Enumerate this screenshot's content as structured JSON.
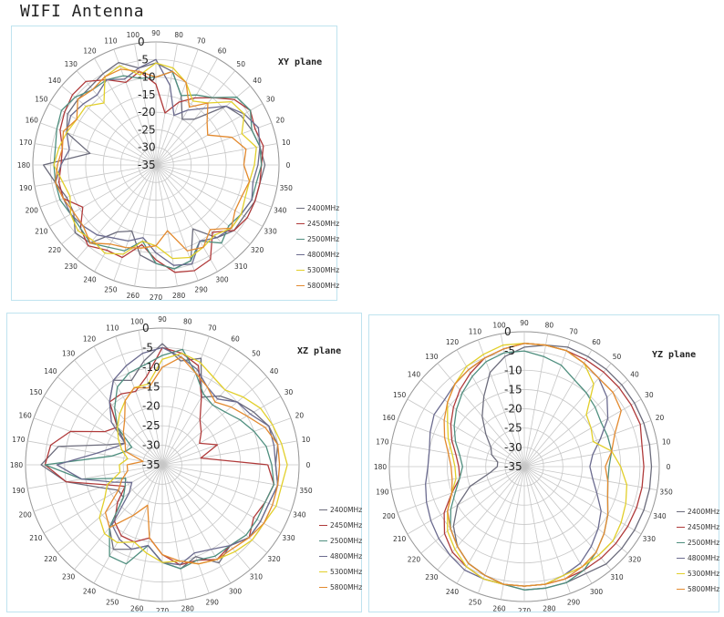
{
  "page": {
    "title": "WIFI Antenna"
  },
  "legend_series": [
    "2400MHz",
    "2450MHz",
    "2500MHz",
    "4800MHz",
    "5300MHz",
    "5800MHz"
  ],
  "colors": {
    "2400MHz": "#6c6c7c",
    "2450MHz": "#b03a3a",
    "2500MHz": "#4f8f7f",
    "4800MHz": "#6b6b8f",
    "5300MHz": "#e2cf2a",
    "5800MHz": "#e38a2f",
    "grid": "#c7c7c7",
    "panel_border": "#bfe3ef"
  },
  "chart_data": [
    {
      "type": "polar",
      "title": "XY plane",
      "r_ticks": [
        0,
        -5,
        -10,
        -15,
        -20,
        -25,
        -30,
        -35
      ],
      "r_range": [
        -35,
        0
      ],
      "angle_ticks": [
        0,
        10,
        20,
        30,
        40,
        50,
        60,
        70,
        80,
        90,
        100,
        110,
        120,
        130,
        140,
        150,
        160,
        170,
        180,
        190,
        200,
        210,
        220,
        230,
        240,
        250,
        260,
        270,
        280,
        290,
        300,
        310,
        320,
        330,
        340,
        350
      ],
      "theta": [
        0,
        10,
        20,
        30,
        40,
        50,
        60,
        70,
        80,
        90,
        100,
        110,
        120,
        130,
        140,
        150,
        160,
        170,
        180,
        190,
        200,
        210,
        220,
        230,
        240,
        250,
        260,
        270,
        280,
        290,
        300,
        310,
        320,
        330,
        340,
        350
      ],
      "series": [
        {
          "name": "2400MHz",
          "values": [
            -4,
            -5,
            -6,
            -7,
            -9,
            -18,
            -20,
            -14,
            -8,
            -6,
            -7,
            -4,
            -5,
            -6,
            -6,
            -6,
            -8,
            -16,
            -3,
            -6,
            -8,
            -8,
            -5,
            -6,
            -13,
            -15,
            -9,
            -7,
            -5,
            -6,
            -14,
            -8,
            -6,
            -6,
            -5,
            -5
          ]
        },
        {
          "name": "2450MHz",
          "values": [
            -5,
            -4,
            -5,
            -4,
            -6,
            -10,
            -13,
            -16,
            -20,
            -12,
            -8,
            -10,
            -7,
            -4,
            -4,
            -5,
            -6,
            -8,
            -8,
            -7,
            -7,
            -11,
            -7,
            -5,
            -7,
            -7,
            -12,
            -8,
            -4,
            -3,
            -4,
            -10,
            -6,
            -5,
            -5,
            -5
          ]
        },
        {
          "name": "2500MHz",
          "values": [
            -5,
            -5,
            -6,
            -4,
            -5,
            -10,
            -12,
            -14,
            -8,
            -10,
            -10,
            -8,
            -7,
            -7,
            -5,
            -4,
            -5,
            -6,
            -6,
            -6,
            -6,
            -7,
            -7,
            -6,
            -8,
            -9,
            -13,
            -7,
            -5,
            -6,
            -10,
            -6,
            -8,
            -7,
            -6,
            -6
          ]
        },
        {
          "name": "4800MHz",
          "values": [
            -6,
            -5,
            -4,
            -6,
            -9,
            -14,
            -17,
            -20,
            -12,
            -5,
            -7,
            -9,
            -7,
            -9,
            -8,
            -7,
            -8,
            -10,
            -8,
            -6,
            -7,
            -7,
            -8,
            -9,
            -11,
            -12,
            -14,
            -10,
            -6,
            -5,
            -10,
            -8,
            -7,
            -7,
            -6,
            -7
          ]
        },
        {
          "name": "5300MHz",
          "values": [
            -7,
            -6,
            -9,
            -6,
            -7,
            -12,
            -14,
            -10,
            -7,
            -6,
            -9,
            -5,
            -6,
            -12,
            -9,
            -9,
            -8,
            -7,
            -6,
            -8,
            -9,
            -7,
            -6,
            -7,
            -6,
            -8,
            -13,
            -12,
            -8,
            -7,
            -8,
            -9,
            -7,
            -7,
            -8,
            -8
          ]
        },
        {
          "name": "5800MHz",
          "values": [
            -10,
            -9,
            -12,
            -18,
            -16,
            -12,
            -16,
            -10,
            -8,
            -10,
            -8,
            -6,
            -6,
            -7,
            -6,
            -9,
            -7,
            -8,
            -7,
            -6,
            -7,
            -8,
            -8,
            -6,
            -9,
            -10,
            -11,
            -12,
            -16,
            -9,
            -8,
            -11,
            -7,
            -9,
            -9,
            -8
          ]
        }
      ]
    },
    {
      "type": "polar",
      "title": "XZ plane",
      "r_ticks": [
        0,
        -5,
        -10,
        -15,
        -20,
        -25,
        -30,
        -35
      ],
      "r_range": [
        -35,
        0
      ],
      "angle_ticks": [
        0,
        10,
        20,
        30,
        40,
        50,
        60,
        70,
        80,
        90,
        100,
        110,
        120,
        130,
        140,
        150,
        160,
        170,
        180,
        190,
        200,
        210,
        220,
        230,
        240,
        250,
        260,
        270,
        280,
        290,
        300,
        310,
        320,
        330,
        340,
        350
      ],
      "theta": [
        0,
        10,
        20,
        30,
        40,
        50,
        60,
        70,
        80,
        90,
        100,
        110,
        120,
        130,
        140,
        150,
        160,
        170,
        180,
        190,
        200,
        210,
        220,
        230,
        240,
        250,
        260,
        270,
        280,
        290,
        300,
        310,
        320,
        330,
        340,
        350
      ],
      "series": [
        {
          "name": "2400MHz",
          "values": [
            -6,
            -5,
            -6,
            -8,
            -10,
            -12,
            -15,
            -6,
            -8,
            -4,
            -8,
            -12,
            -10,
            -14,
            -20,
            -24,
            -20,
            -8,
            -4,
            -10,
            -18,
            -22,
            -22,
            -14,
            -10,
            -12,
            -14,
            -10,
            -8,
            -10,
            -6,
            -8,
            -6,
            -6,
            -6,
            -5
          ]
        },
        {
          "name": "2450MHz",
          "values": [
            -8,
            -25,
            -20,
            -24,
            -22,
            -20,
            -15,
            -8,
            -6,
            -5,
            -12,
            -15,
            -14,
            -14,
            -20,
            -18,
            -10,
            -6,
            -5,
            -10,
            -20,
            -24,
            -20,
            -16,
            -14,
            -14,
            -16,
            -12,
            -9,
            -9,
            -7,
            -8,
            -6,
            -8,
            -7,
            -6
          ]
        },
        {
          "name": "2500MHz",
          "values": [
            -7,
            -8,
            -10,
            -12,
            -14,
            -15,
            -14,
            -10,
            -5,
            -7,
            -9,
            -10,
            -12,
            -16,
            -20,
            -26,
            -25,
            -22,
            -5,
            -14,
            -25,
            -24,
            -22,
            -14,
            -8,
            -8,
            -14,
            -10,
            -8,
            -9,
            -8,
            -8,
            -7,
            -7,
            -7,
            -6
          ]
        },
        {
          "name": "4800MHz",
          "values": [
            -6,
            -6,
            -6,
            -9,
            -10,
            -13,
            -12,
            -9,
            -7,
            -5,
            -6,
            -8,
            -10,
            -14,
            -18,
            -24,
            -22,
            -18,
            -8,
            -14,
            -22,
            -26,
            -24,
            -15,
            -13,
            -12,
            -14,
            -10,
            -9,
            -11,
            -10,
            -8,
            -6,
            -6,
            -6,
            -5
          ]
        },
        {
          "name": "5300MHz",
          "values": [
            -3,
            -4,
            -5,
            -6,
            -8,
            -10,
            -9,
            -7,
            -6,
            -8,
            -14,
            -14,
            -16,
            -18,
            -20,
            -22,
            -24,
            -26,
            -24,
            -24,
            -20,
            -18,
            -14,
            -12,
            -12,
            -14,
            -12,
            -10,
            -10,
            -8,
            -7,
            -6,
            -5,
            -5,
            -4,
            -4
          ]
        },
        {
          "name": "5800MHz",
          "values": [
            -5,
            -5,
            -7,
            -10,
            -12,
            -14,
            -12,
            -10,
            -7,
            -10,
            -15,
            -14,
            -16,
            -20,
            -22,
            -24,
            -25,
            -30,
            -26,
            -26,
            -24,
            -22,
            -16,
            -14,
            -20,
            -24,
            -16,
            -12,
            -10,
            -8,
            -7,
            -7,
            -6,
            -5,
            -5,
            -5
          ]
        }
      ]
    },
    {
      "type": "polar",
      "title": "YZ plane",
      "r_ticks": [
        0,
        -5,
        -10,
        -15,
        -20,
        -25,
        -30,
        -35
      ],
      "r_range": [
        -35,
        0
      ],
      "angle_ticks": [
        0,
        10,
        20,
        30,
        40,
        50,
        60,
        70,
        80,
        90,
        100,
        110,
        120,
        130,
        140,
        150,
        160,
        170,
        180,
        190,
        200,
        210,
        220,
        230,
        240,
        250,
        260,
        270,
        280,
        290,
        300,
        310,
        320,
        330,
        340,
        350
      ],
      "theta": [
        0,
        10,
        20,
        30,
        40,
        50,
        60,
        70,
        80,
        90,
        100,
        110,
        120,
        130,
        140,
        150,
        160,
        170,
        180,
        190,
        200,
        210,
        220,
        230,
        240,
        250,
        260,
        270,
        280,
        290,
        300,
        310,
        320,
        330,
        340,
        350
      ],
      "series": [
        {
          "name": "2400MHz",
          "values": [
            -2,
            -2,
            -2,
            -2,
            -2,
            -2,
            -2,
            -2,
            -3,
            -4,
            -6,
            -9,
            -14,
            -18,
            -22,
            -25,
            -26,
            -28,
            -28,
            -26,
            -20,
            -15,
            -11,
            -8,
            -6,
            -5,
            -4,
            -3,
            -3,
            -3,
            -3,
            -2,
            -2,
            -2,
            -2,
            -2
          ]
        },
        {
          "name": "2450MHz",
          "values": [
            -4,
            -4,
            -3,
            -3,
            -3,
            -3,
            -3,
            -3,
            -3,
            -3,
            -4,
            -5,
            -7,
            -9,
            -11,
            -13,
            -15,
            -17,
            -18,
            -18,
            -15,
            -11,
            -8,
            -6,
            -5,
            -4,
            -4,
            -4,
            -4,
            -4,
            -4,
            -4,
            -4,
            -4,
            -4,
            -4
          ]
        },
        {
          "name": "2500MHz",
          "values": [
            -13,
            -12,
            -12,
            -12,
            -11,
            -10,
            -9,
            -7,
            -6,
            -5,
            -5,
            -6,
            -8,
            -10,
            -12,
            -14,
            -16,
            -18,
            -19,
            -18,
            -16,
            -13,
            -10,
            -8,
            -6,
            -5,
            -4,
            -3,
            -3,
            -3,
            -4,
            -6,
            -8,
            -10,
            -12,
            -13
          ]
        },
        {
          "name": "4800MHz",
          "values": [
            -18,
            -17,
            -14,
            -10,
            -7,
            -5,
            -4,
            -3,
            -3,
            -3,
            -4,
            -5,
            -6,
            -7,
            -8,
            -8,
            -9,
            -10,
            -10,
            -9,
            -8,
            -7,
            -6,
            -5,
            -4,
            -4,
            -4,
            -4,
            -4,
            -5,
            -6,
            -8,
            -10,
            -12,
            -15,
            -17
          ]
        },
        {
          "name": "5300MHz",
          "values": [
            -10,
            -12,
            -16,
            -15,
            -14,
            -7,
            -4,
            -3,
            -3,
            -3,
            -3,
            -4,
            -5,
            -7,
            -9,
            -12,
            -14,
            -16,
            -17,
            -17,
            -15,
            -12,
            -9,
            -7,
            -5,
            -4,
            -4,
            -4,
            -4,
            -5,
            -5,
            -5,
            -5,
            -6,
            -7,
            -8
          ]
        },
        {
          "name": "5800MHz",
          "values": [
            -14,
            -12,
            -10,
            -6,
            -5,
            -5,
            -4,
            -3,
            -3,
            -3,
            -4,
            -5,
            -6,
            -7,
            -9,
            -11,
            -13,
            -15,
            -16,
            -16,
            -15,
            -12,
            -10,
            -8,
            -6,
            -5,
            -4,
            -4,
            -4,
            -4,
            -5,
            -6,
            -8,
            -10,
            -12,
            -13
          ]
        }
      ]
    }
  ]
}
